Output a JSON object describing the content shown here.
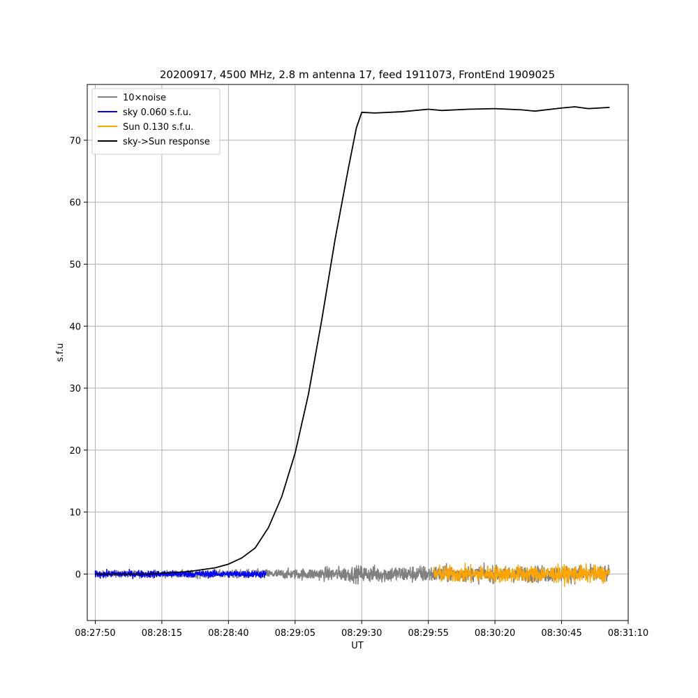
{
  "chart_data": {
    "type": "line",
    "title": "20200917, 4500 MHz, 2.8 m antenna 17, feed 1911073, FrontEnd 1909025",
    "xlabel": "UT",
    "ylabel": "s.f.u",
    "xlim": [
      "08:27:47",
      "08:31:10"
    ],
    "ylim": [
      -7.5,
      79
    ],
    "x_ticks": [
      "08:27:50",
      "08:28:15",
      "08:28:40",
      "08:29:05",
      "08:29:30",
      "08:29:55",
      "08:30:20",
      "08:30:45",
      "08:31:10"
    ],
    "y_ticks": [
      0,
      10,
      20,
      30,
      40,
      50,
      60,
      70
    ],
    "grid": true,
    "legend_position": "top-left",
    "series": [
      {
        "name": "10×noise",
        "color": "#808080",
        "kind": "noise",
        "x_range": [
          "08:27:50",
          "08:31:03"
        ],
        "envelope": {
          "x": [
            "08:27:50",
            "08:28:40",
            "08:29:05",
            "08:29:30",
            "08:29:55",
            "08:30:20",
            "08:30:45",
            "08:31:03"
          ],
          "amplitude": [
            1.0,
            1.3,
            1.6,
            2.6,
            2.6,
            2.4,
            2.6,
            2.6
          ]
        }
      },
      {
        "name": "sky 0.060 s.f.u.",
        "color": "#0000ff",
        "kind": "noise",
        "x_range": [
          "08:27:50",
          "08:28:54"
        ],
        "envelope": {
          "x": [
            "08:27:50",
            "08:28:54"
          ],
          "amplitude": [
            1.1,
            1.1
          ]
        }
      },
      {
        "name": "Sun 0.130 s.f.u.",
        "color": "#ffa500",
        "kind": "noise",
        "x_range": [
          "08:29:57",
          "08:31:03"
        ],
        "envelope": {
          "x": [
            "08:29:57",
            "08:31:03"
          ],
          "amplitude": [
            2.6,
            2.6
          ]
        }
      },
      {
        "name": "sky->Sun response",
        "color": "#000000",
        "kind": "line",
        "x": [
          "08:27:50",
          "08:28:10",
          "08:28:25",
          "08:28:35",
          "08:28:40",
          "08:28:45",
          "08:28:50",
          "08:28:55",
          "08:29:00",
          "08:29:05",
          "08:29:10",
          "08:29:15",
          "08:29:20",
          "08:29:25",
          "08:29:28",
          "08:29:30",
          "08:29:35",
          "08:29:45",
          "08:29:55",
          "08:30:00",
          "08:30:10",
          "08:30:20",
          "08:30:30",
          "08:30:35",
          "08:30:45",
          "08:30:50",
          "08:30:55",
          "08:31:03"
        ],
        "values": [
          0.0,
          0.0,
          0.4,
          1.0,
          1.6,
          2.6,
          4.2,
          7.5,
          12.5,
          19.5,
          29.0,
          41.0,
          54.0,
          65.5,
          72.0,
          74.5,
          74.4,
          74.6,
          75.0,
          74.8,
          75.0,
          75.1,
          74.9,
          74.7,
          75.2,
          75.4,
          75.1,
          75.3
        ]
      }
    ]
  }
}
